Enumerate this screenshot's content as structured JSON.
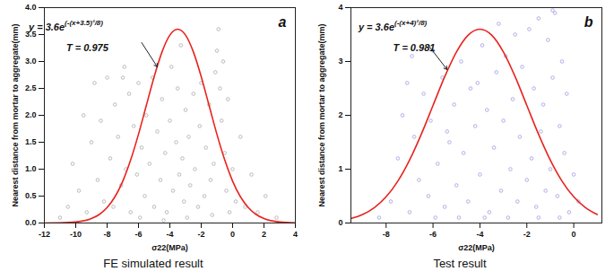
{
  "chart_data": [
    {
      "type": "scatter",
      "panel_label": "a",
      "caption": "FE simulated result",
      "x_label": "σ22(MPa)",
      "y_label": "Nearest distance from mortar to aggregate(mm)",
      "xlim": [
        -12,
        4
      ],
      "xticks": [
        -12,
        -10,
        -8,
        -6,
        -4,
        -2,
        0,
        2,
        4
      ],
      "ylim": [
        0,
        4
      ],
      "yticks": [
        {
          "value": 0,
          "label": "0.0"
        },
        0.5,
        {
          "value": 1,
          "label": "1.0"
        },
        1.5,
        {
          "value": 2,
          "label": "2.0"
        },
        2.5,
        {
          "value": 3,
          "label": "3.0"
        },
        3.5,
        {
          "value": 4,
          "label": "4.0"
        }
      ],
      "series": [
        {
          "type": "scatter",
          "marker": "circle",
          "color": "#a9a9a9",
          "x": [
            -10.5,
            -10.2,
            -9.8,
            -9.5,
            -9.3,
            -9.0,
            -8.8,
            -8.6,
            -8.4,
            -8.2,
            -8.0,
            -7.8,
            -7.6,
            -7.5,
            -7.3,
            -7.1,
            -7.0,
            -6.8,
            -6.6,
            -6.5,
            -6.3,
            -6.1,
            -6.0,
            -5.8,
            -5.6,
            -5.5,
            -5.3,
            -5.1,
            -5.0,
            -4.8,
            -4.6,
            -4.5,
            -4.3,
            -4.2,
            -4.0,
            -3.9,
            -3.8,
            -3.6,
            -3.5,
            -3.4,
            -3.2,
            -3.1,
            -3.0,
            -2.8,
            -2.7,
            -2.5,
            -2.4,
            -2.2,
            -2.1,
            -2.0,
            -1.8,
            -1.7,
            -1.5,
            -1.4,
            -1.2,
            -1.1,
            -1.0,
            -0.9,
            -0.8,
            -0.7,
            -0.6,
            -0.5,
            -0.4,
            -0.3,
            -0.2,
            0.0,
            0.2,
            0.5,
            0.8,
            1.2,
            1.6,
            2.1,
            2.8,
            -11.0,
            -5.9,
            -4.4,
            -3.3,
            -2.9,
            -6.9,
            -1.3
          ],
          "values": [
            0.3,
            1.1,
            0.6,
            2.0,
            0.2,
            1.5,
            2.6,
            0.8,
            1.9,
            0.4,
            2.7,
            1.2,
            0.3,
            2.2,
            1.6,
            0.7,
            2.7,
            1.0,
            2.4,
            0.2,
            1.8,
            0.9,
            2.6,
            1.4,
            0.5,
            2.0,
            1.1,
            2.7,
            0.3,
            1.7,
            0.8,
            2.3,
            1.3,
            0.2,
            1.9,
            2.9,
            0.6,
            1.5,
            2.5,
            0.9,
            1.2,
            0.4,
            2.1,
            1.6,
            0.7,
            2.4,
            1.0,
            0.3,
            1.8,
            2.6,
            0.5,
            1.4,
            2.2,
            0.8,
            1.1,
            2.8,
            3.2,
            3.6,
            2.5,
            1.9,
            3.0,
            1.3,
            0.6,
            2.3,
            0.2,
            1.0,
            0.4,
            1.6,
            0.3,
            0.9,
            0.2,
            0.5,
            0.1,
            0.1,
            0.1,
            0.05,
            3.3,
            0.1,
            2.9,
            0.15
          ]
        },
        {
          "type": "line",
          "line_style": "solid",
          "color": "#e8231e",
          "x": [
            -12,
            -11,
            -10,
            -9,
            -8.5,
            -8,
            -7.5,
            -7,
            -6.5,
            -6,
            -5.5,
            -5,
            -4.5,
            -4,
            -3.5,
            -3,
            -2.5,
            -2,
            -1.5,
            -1,
            -0.5,
            0,
            0.5,
            1,
            1.5,
            2,
            3,
            4
          ],
          "values": [
            0.0004,
            0.003,
            0.018,
            0.082,
            0.158,
            0.287,
            0.487,
            0.778,
            1.169,
            1.648,
            2.183,
            2.718,
            3.177,
            3.489,
            3.6,
            3.489,
            3.177,
            2.718,
            2.183,
            1.648,
            1.169,
            0.778,
            0.487,
            0.287,
            0.158,
            0.082,
            0.018,
            0.003
          ]
        }
      ],
      "annotations": [
        {
          "text": "y = 3.6e",
          "superscript": "(-(x+3.5)²/8)",
          "x": -10.6,
          "y": 3.62
        },
        {
          "text": "T = 0.975",
          "x": -10.6,
          "y": 3.25
        }
      ],
      "arrow": {
        "x1": -5.8,
        "y1": 3.35,
        "x2": -4.8,
        "y2": 2.9
      }
    },
    {
      "type": "scatter",
      "panel_label": "b",
      "caption": "Test result",
      "x_label": "σ22(MPa)",
      "y_label": "Nearest distance from mortar to aggregate(mm)",
      "xlim": [
        -9.5,
        1.2
      ],
      "xticks": [
        -8,
        -6,
        -4,
        -2,
        0
      ],
      "ylim": [
        0,
        4
      ],
      "yticks": [
        0,
        1,
        2,
        3,
        4
      ],
      "series": [
        {
          "type": "scatter",
          "marker": "circle",
          "color": "#9a9ae0",
          "x": [
            -7.8,
            -7.5,
            -7.3,
            -7.0,
            -6.8,
            -6.6,
            -6.4,
            -6.2,
            -6.1,
            -6.0,
            -5.8,
            -5.6,
            -5.5,
            -5.3,
            -5.1,
            -5.0,
            -4.8,
            -4.7,
            -4.5,
            -4.4,
            -4.2,
            -4.0,
            -3.9,
            -3.7,
            -3.6,
            -3.4,
            -3.3,
            -3.1,
            -3.0,
            -2.9,
            -2.7,
            -2.6,
            -2.4,
            -2.3,
            -2.2,
            -2.0,
            -1.9,
            -1.8,
            -1.7,
            -1.6,
            -1.5,
            -1.4,
            -1.3,
            -1.2,
            -1.1,
            -1.0,
            -0.9,
            -0.8,
            -0.7,
            -0.6,
            -0.5,
            -0.4,
            -0.3,
            -0.2,
            0.0,
            0.2,
            -8.3,
            -7.1,
            -5.9,
            -4.9,
            -3.8,
            -2.8,
            -1.5,
            -0.6,
            -6.9,
            -2.5,
            -0.9,
            -4.1,
            -5.4,
            -3.2
          ],
          "values": [
            0.4,
            1.2,
            2.0,
            0.2,
            1.6,
            0.8,
            2.4,
            0.5,
            1.9,
            3.2,
            1.1,
            2.7,
            0.3,
            1.5,
            2.2,
            0.7,
            3.0,
            1.3,
            0.4,
            2.5,
            1.8,
            0.9,
            3.3,
            2.1,
            0.2,
            1.4,
            2.8,
            0.6,
            1.9,
            3.1,
            1.0,
            2.3,
            0.4,
            1.6,
            2.9,
            0.8,
            3.6,
            1.2,
            2.5,
            0.3,
            3.8,
            1.7,
            2.2,
            0.6,
            3.4,
            1.0,
            2.7,
            3.9,
            0.5,
            1.8,
            3.0,
            1.3,
            2.4,
            0.2,
            0.9,
            0.4,
            0.1,
            2.6,
            0.1,
            0.1,
            0.1,
            0.1,
            0.1,
            0.1,
            3.1,
            3.5,
            3.95,
            2.6,
            1.7,
            3.7
          ]
        },
        {
          "type": "line",
          "line_style": "solid",
          "color": "#e8231e",
          "x": [
            -9.5,
            -9,
            -8.5,
            -8,
            -7.5,
            -7,
            -6.5,
            -6,
            -5.5,
            -5,
            -4.5,
            -4,
            -3.5,
            -3,
            -2.5,
            -2,
            -1.5,
            -1,
            -0.5,
            0,
            0.5,
            1
          ],
          "values": [
            0.082,
            0.158,
            0.287,
            0.487,
            0.778,
            1.169,
            1.648,
            2.183,
            2.718,
            3.177,
            3.489,
            3.6,
            3.489,
            3.177,
            2.718,
            2.183,
            1.648,
            1.169,
            0.778,
            0.487,
            0.287,
            0.158
          ]
        }
      ],
      "annotations": [
        {
          "text": "y = 3.6e",
          "superscript": "(-(x+4)²/8)",
          "x": -7.7,
          "y": 3.62
        },
        {
          "text": "T = 0.981",
          "x": -7.7,
          "y": 3.25
        }
      ],
      "arrow": {
        "x1": -6.2,
        "y1": 3.3,
        "x2": -5.4,
        "y2": 2.85
      }
    }
  ]
}
